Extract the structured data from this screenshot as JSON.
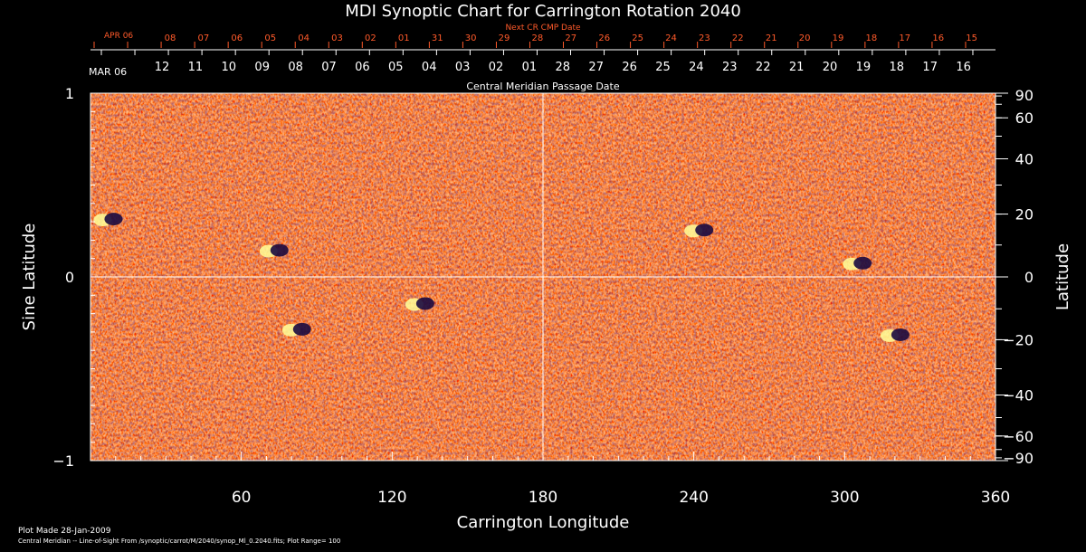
{
  "chart_data": {
    "type": "heatmap",
    "title": "MDI Synoptic Chart for Carrington Rotation 2040",
    "xlabel": "Carrington Longitude",
    "ylabel": "Sine Latitude",
    "y2label": "Latitude",
    "xlim": [
      0,
      360
    ],
    "ylim": [
      -1,
      1
    ],
    "x_ticks": [
      "60",
      "120",
      "180",
      "240",
      "300",
      "360"
    ],
    "y_ticks": [
      "-1",
      "0",
      "1"
    ],
    "lat_ticks": [
      "90",
      "60",
      "40",
      "20",
      "0",
      "−20",
      "−40",
      "−60",
      "−90"
    ],
    "lat_values": [
      90,
      60,
      40,
      20,
      0,
      -20,
      -40,
      -60,
      -90
    ],
    "top_axis_title": "Central Meridian Passage Date",
    "top_axis_start_label": "MAR 06",
    "top_axis_dates": [
      "12",
      "11",
      "10",
      "09",
      "08",
      "07",
      "06",
      "05",
      "04",
      "03",
      "02",
      "01",
      "28",
      "27",
      "26",
      "25",
      "24",
      "23",
      "22",
      "21",
      "20",
      "19",
      "18",
      "17",
      "16"
    ],
    "next_cr_title": "Next CR CMP Date",
    "next_cr_start_label": "APR 06",
    "next_cr_dates": [
      "08",
      "07",
      "06",
      "05",
      "04",
      "03",
      "02",
      "01",
      "31",
      "30",
      "29",
      "28",
      "27",
      "26",
      "25",
      "24",
      "23",
      "22",
      "21",
      "20",
      "19",
      "18",
      "17",
      "16",
      "15"
    ],
    "footer_line1": "Plot Made 28-Jan-2009",
    "footer_line2": "Central Meridian -- Line-of-Sight From /synoptic/carrot/M/2040/synop_Ml_0.2040.fits; Plot Range=  100",
    "background_color": "#ff5a1e",
    "positive_color": "#ffff99",
    "negative_color": "#1a0a40",
    "active_regions": [
      {
        "lon": 7,
        "sinlat": 0.31,
        "polarity": "bipolar"
      },
      {
        "lon": 73,
        "sinlat": 0.14,
        "polarity": "bipolar"
      },
      {
        "lon": 82,
        "sinlat": -0.29,
        "polarity": "bipolar"
      },
      {
        "lon": 131,
        "sinlat": -0.15,
        "polarity": "bipolar"
      },
      {
        "lon": 242,
        "sinlat": 0.25,
        "polarity": "bipolar"
      },
      {
        "lon": 305,
        "sinlat": 0.07,
        "polarity": "bipolar"
      },
      {
        "lon": 320,
        "sinlat": -0.32,
        "polarity": "bipolar"
      }
    ]
  }
}
